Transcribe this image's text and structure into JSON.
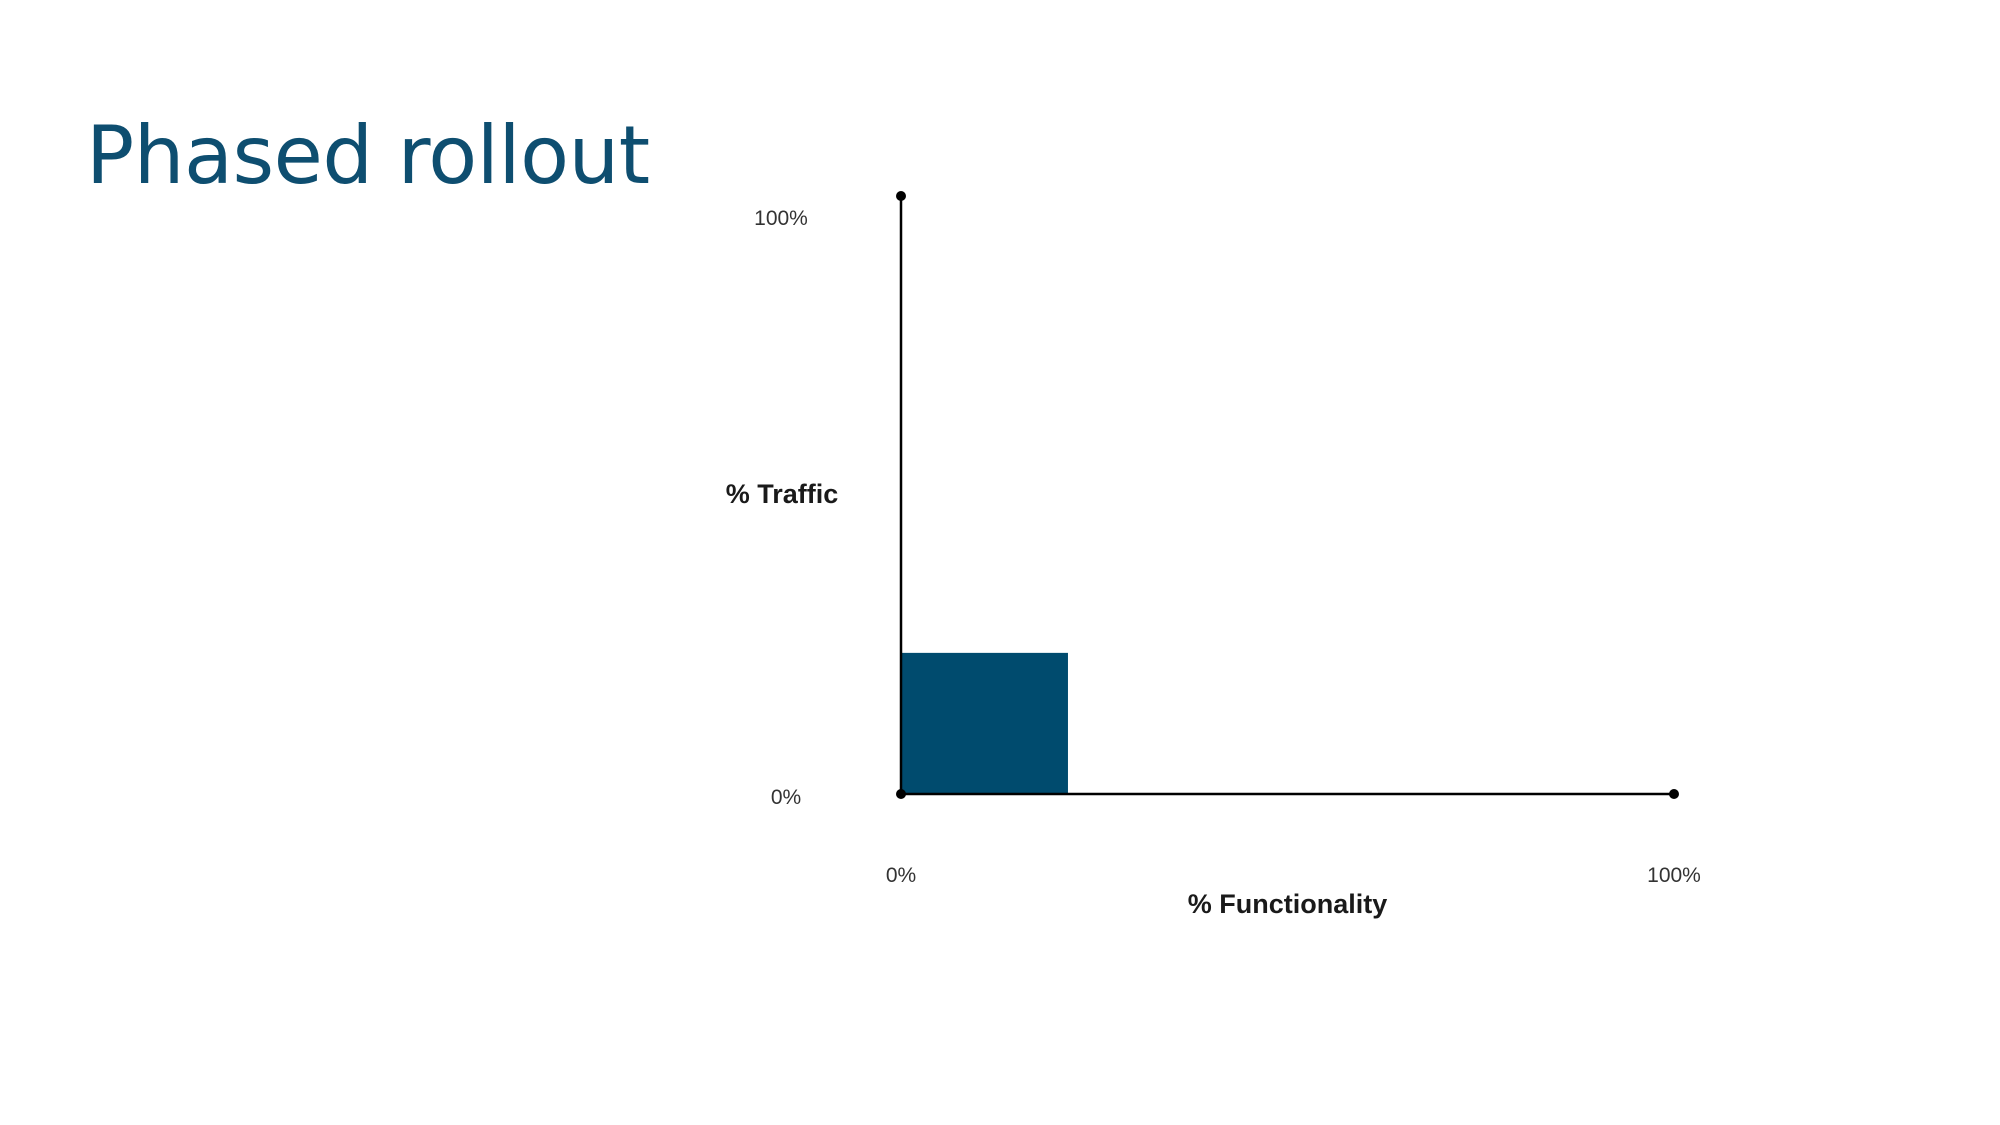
{
  "slide": {
    "title": "Phased rollout"
  },
  "colors": {
    "title": "#0e4e70",
    "bar": "#004b6e",
    "axis": "#000000"
  },
  "chart_data": {
    "type": "area",
    "title": "",
    "xlabel": "% Functionality",
    "ylabel": "% Traffic",
    "xlim": [
      0,
      100
    ],
    "ylim": [
      0,
      100
    ],
    "x_ticks": [
      "0%",
      "100%"
    ],
    "y_ticks": [
      "0%",
      "100%"
    ],
    "grid": false,
    "legend": "none",
    "series": [
      {
        "x_range": [
          0,
          21.6
        ],
        "y_value": 23.6,
        "color": "#004b6e"
      }
    ]
  }
}
